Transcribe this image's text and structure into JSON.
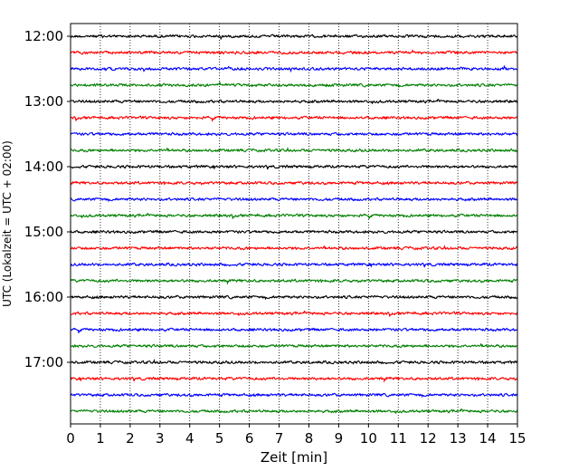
{
  "chart_data": {
    "type": "line",
    "title": "",
    "xlabel": "Zeit  [min]",
    "ylabel": "UTC (Lokalzeit = UTC + 02:00)",
    "xlim": [
      0,
      15
    ],
    "x_ticks": [
      0,
      1,
      2,
      3,
      4,
      5,
      6,
      7,
      8,
      9,
      10,
      11,
      12,
      13,
      14,
      15
    ],
    "x_tick_labels": [
      "0",
      "1",
      "2",
      "3",
      "4",
      "5",
      "6",
      "7",
      "8",
      "9",
      "10",
      "11",
      "12",
      "13",
      "14",
      "15"
    ],
    "y_tick_labels": [
      "12:00",
      "13:00",
      "14:00",
      "15:00",
      "16:00",
      "17:00"
    ],
    "grid": "vertical dotted",
    "trace_interval_minutes": 15,
    "color_cycle": [
      "#000000",
      "#ff0000",
      "#0000ff",
      "#008000"
    ],
    "traces": [
      {
        "start": "12:00",
        "color": "#000000"
      },
      {
        "start": "12:15",
        "color": "#ff0000"
      },
      {
        "start": "12:30",
        "color": "#0000ff"
      },
      {
        "start": "12:45",
        "color": "#008000"
      },
      {
        "start": "13:00",
        "color": "#000000"
      },
      {
        "start": "13:15",
        "color": "#ff0000"
      },
      {
        "start": "13:30",
        "color": "#0000ff"
      },
      {
        "start": "13:45",
        "color": "#008000"
      },
      {
        "start": "14:00",
        "color": "#000000"
      },
      {
        "start": "14:15",
        "color": "#ff0000"
      },
      {
        "start": "14:30",
        "color": "#0000ff"
      },
      {
        "start": "14:45",
        "color": "#008000"
      },
      {
        "start": "15:00",
        "color": "#000000"
      },
      {
        "start": "15:15",
        "color": "#ff0000"
      },
      {
        "start": "15:30",
        "color": "#0000ff"
      },
      {
        "start": "15:45",
        "color": "#008000"
      },
      {
        "start": "16:00",
        "color": "#000000"
      },
      {
        "start": "16:15",
        "color": "#ff0000"
      },
      {
        "start": "16:30",
        "color": "#0000ff"
      },
      {
        "start": "16:45",
        "color": "#008000"
      },
      {
        "start": "17:00",
        "color": "#000000"
      },
      {
        "start": "17:15",
        "color": "#ff0000"
      },
      {
        "start": "17:30",
        "color": "#0000ff"
      },
      {
        "start": "17:45",
        "color": "#008000"
      }
    ]
  }
}
